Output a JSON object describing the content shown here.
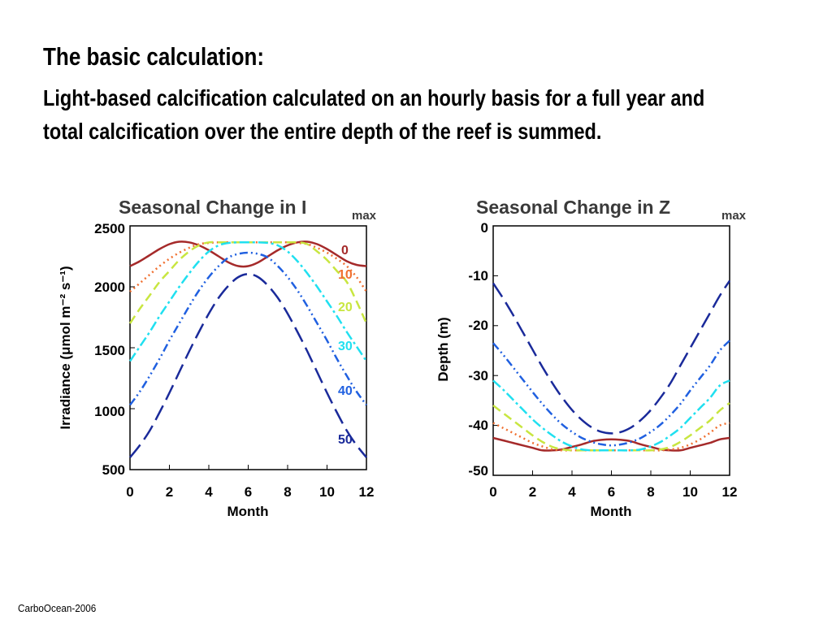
{
  "slide": {
    "title": "The basic calculation:",
    "subtitle": "Light-based calcification calculated on an hourly basis for a full year and total calcification over the entire depth of the reef is summed.",
    "footer": "CarboOcean-2006"
  },
  "chart_data": [
    {
      "type": "line",
      "title": "Seasonal Change in I",
      "title_subscript": "max",
      "xlabel": "Month",
      "ylabel": "Irradiance (μmol m⁻² s⁻¹)",
      "xlim": [
        0,
        12
      ],
      "ylim": [
        500,
        2500
      ],
      "xticks": [
        0,
        2,
        4,
        6,
        8,
        10,
        12
      ],
      "yticks": [
        500,
        1000,
        1500,
        2000,
        2500
      ],
      "x": [
        0,
        0.5,
        1,
        1.5,
        2,
        2.5,
        3,
        3.5,
        4,
        4.5,
        5,
        5.5,
        6,
        6.5,
        7,
        7.5,
        8,
        8.5,
        9,
        9.5,
        10,
        10.5,
        11,
        11.5,
        12
      ],
      "series": [
        {
          "name": "0",
          "color": "#a52a2a",
          "dash": "solid",
          "values": [
            2170,
            2210,
            2260,
            2310,
            2350,
            2370,
            2365,
            2340,
            2300,
            2250,
            2200,
            2170,
            2170,
            2200,
            2250,
            2300,
            2340,
            2365,
            2370,
            2350,
            2310,
            2260,
            2210,
            2180,
            2170
          ]
        },
        {
          "name": "10",
          "color": "#f07030",
          "dash": "dotted",
          "values": [
            1960,
            2030,
            2100,
            2170,
            2230,
            2280,
            2320,
            2350,
            2360,
            2365,
            2365,
            2365,
            2365,
            2365,
            2365,
            2365,
            2365,
            2360,
            2350,
            2320,
            2280,
            2230,
            2170,
            2080,
            1960
          ]
        },
        {
          "name": "20",
          "color": "#c8e640",
          "dash": "dashed",
          "values": [
            1700,
            1820,
            1930,
            2040,
            2130,
            2220,
            2290,
            2340,
            2365,
            2365,
            2365,
            2365,
            2365,
            2365,
            2365,
            2365,
            2365,
            2365,
            2350,
            2290,
            2220,
            2130,
            2040,
            1880,
            1700
          ]
        },
        {
          "name": "30",
          "color": "#20e0f0",
          "dash": "dashdot",
          "values": [
            1390,
            1510,
            1630,
            1760,
            1880,
            2000,
            2110,
            2210,
            2290,
            2340,
            2360,
            2365,
            2365,
            2365,
            2360,
            2340,
            2290,
            2210,
            2110,
            2000,
            1880,
            1760,
            1630,
            1510,
            1390
          ]
        },
        {
          "name": "40",
          "color": "#2060e0",
          "dash": "dashdotdot",
          "values": [
            1030,
            1140,
            1270,
            1410,
            1560,
            1700,
            1840,
            1970,
            2080,
            2170,
            2240,
            2270,
            2280,
            2270,
            2240,
            2170,
            2080,
            1970,
            1840,
            1700,
            1560,
            1410,
            1270,
            1140,
            1030
          ]
        },
        {
          "name": "50",
          "color": "#1a2a9a",
          "dash": "longdash",
          "values": [
            600,
            700,
            820,
            970,
            1130,
            1300,
            1470,
            1630,
            1780,
            1910,
            2010,
            2080,
            2105,
            2080,
            2010,
            1910,
            1780,
            1630,
            1470,
            1300,
            1130,
            970,
            820,
            700,
            600
          ]
        }
      ]
    },
    {
      "type": "line",
      "title": "Seasonal Change in Z",
      "title_subscript": "max",
      "xlabel": "Month",
      "ylabel": "Depth (m)",
      "xlim": [
        0,
        12
      ],
      "ylim": [
        -50,
        0
      ],
      "xticks": [
        0,
        2,
        4,
        6,
        8,
        10,
        12
      ],
      "yticks": [
        0,
        -10,
        -20,
        -30,
        -40,
        -50
      ],
      "x": [
        0,
        0.5,
        1,
        1.5,
        2,
        2.5,
        3,
        3.5,
        4,
        4.5,
        5,
        5.5,
        6,
        6.5,
        7,
        7.5,
        8,
        8.5,
        9,
        9.5,
        10,
        10.5,
        11,
        11.5,
        12
      ],
      "series": [
        {
          "name": "0",
          "color": "#a52a2a",
          "dash": "solid",
          "values": [
            -42.5,
            -43.0,
            -43.5,
            -44.0,
            -44.5,
            -45.0,
            -45.0,
            -44.8,
            -44.3,
            -43.8,
            -43.2,
            -42.9,
            -42.8,
            -42.9,
            -43.2,
            -43.8,
            -44.3,
            -44.8,
            -45.0,
            -45.0,
            -44.5,
            -44.0,
            -43.5,
            -42.8,
            -42.5
          ]
        },
        {
          "name": "10",
          "color": "#f07030",
          "dash": "dotted",
          "values": [
            -39.5,
            -40.5,
            -41.5,
            -42.5,
            -43.5,
            -44.2,
            -44.8,
            -45.0,
            -45.0,
            -45.0,
            -45.0,
            -45.0,
            -45.0,
            -45.0,
            -45.0,
            -45.0,
            -45.0,
            -45.0,
            -44.8,
            -44.5,
            -43.8,
            -42.8,
            -41.5,
            -40.0,
            -39.5
          ]
        },
        {
          "name": "20",
          "color": "#c8e640",
          "dash": "dashed",
          "values": [
            -36.0,
            -37.5,
            -39.0,
            -40.5,
            -42.0,
            -43.3,
            -44.3,
            -44.8,
            -45.0,
            -45.0,
            -45.0,
            -45.0,
            -45.0,
            -45.0,
            -45.0,
            -45.0,
            -45.0,
            -44.8,
            -44.3,
            -43.3,
            -42.0,
            -40.5,
            -39.0,
            -37.0,
            -35.5
          ]
        },
        {
          "name": "30",
          "color": "#20e0f0",
          "dash": "dashdot",
          "values": [
            -31.0,
            -32.8,
            -34.8,
            -36.8,
            -38.8,
            -40.5,
            -42.0,
            -43.3,
            -44.2,
            -44.8,
            -45.0,
            -45.0,
            -45.0,
            -45.0,
            -45.0,
            -44.8,
            -44.2,
            -43.3,
            -42.0,
            -40.5,
            -38.5,
            -36.5,
            -34.5,
            -32.0,
            -31.0
          ]
        },
        {
          "name": "40",
          "color": "#2060e0",
          "dash": "dashdotdot",
          "values": [
            -23.5,
            -25.8,
            -28.3,
            -30.8,
            -33.3,
            -35.7,
            -37.9,
            -39.8,
            -41.3,
            -42.5,
            -43.3,
            -43.8,
            -44.0,
            -43.8,
            -43.3,
            -42.5,
            -41.3,
            -39.8,
            -37.9,
            -35.7,
            -33.0,
            -30.5,
            -28.0,
            -25.0,
            -23.0
          ]
        },
        {
          "name": "50",
          "color": "#1a2a9a",
          "dash": "longdash",
          "values": [
            -11.5,
            -14.5,
            -17.8,
            -21.3,
            -24.8,
            -28.3,
            -31.5,
            -34.4,
            -36.9,
            -38.9,
            -40.4,
            -41.3,
            -41.6,
            -41.3,
            -40.4,
            -38.9,
            -36.9,
            -34.4,
            -31.5,
            -28.0,
            -24.5,
            -21.0,
            -17.5,
            -14.0,
            -11.0
          ]
        }
      ]
    }
  ]
}
